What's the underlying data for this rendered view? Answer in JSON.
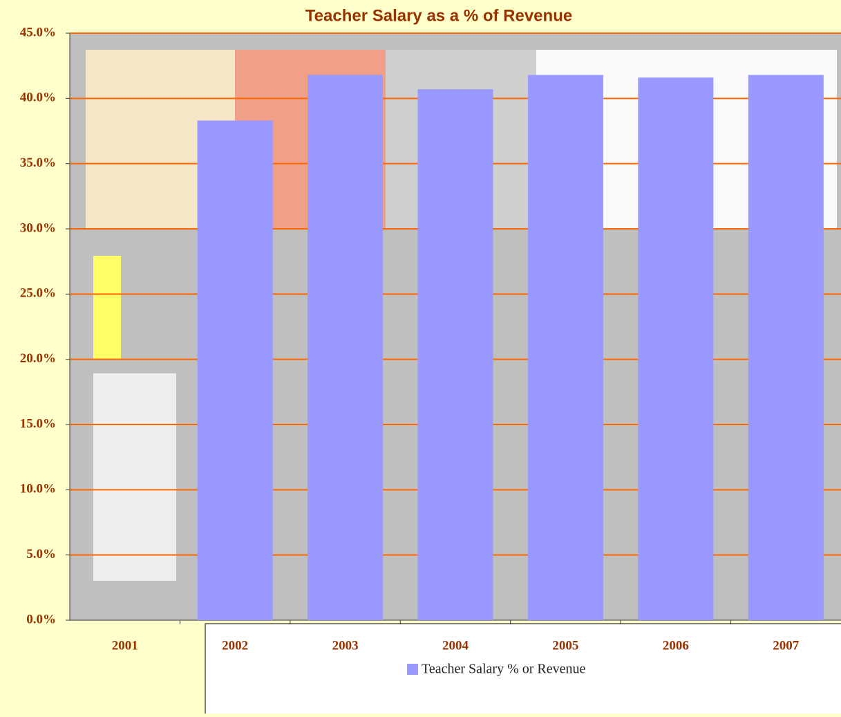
{
  "chart_data": {
    "type": "bar",
    "title": "Teacher Salary as a % of Revenue",
    "categories": [
      "2001",
      "2002",
      "2003",
      "2004",
      "2005",
      "2006",
      "2007"
    ],
    "series": [
      {
        "name": "Teacher Salary % or Revenue",
        "color": "#9999ff",
        "values": [
          null,
          38.3,
          41.8,
          40.7,
          41.8,
          41.6,
          41.8
        ]
      }
    ],
    "ylim": [
      0,
      45
    ],
    "yticks": [
      {
        "value": 0,
        "label": "0.0%"
      },
      {
        "value": 5,
        "label": "5.0%"
      },
      {
        "value": 10,
        "label": "10.0%"
      },
      {
        "value": 15,
        "label": "15.0%"
      },
      {
        "value": 20,
        "label": "20.0%"
      },
      {
        "value": 25,
        "label": "25.0%"
      },
      {
        "value": 30,
        "label": "30.0%"
      },
      {
        "value": 35,
        "label": "35.0%"
      },
      {
        "value": 40,
        "label": "40.0%"
      },
      {
        "value": 45,
        "label": "45.0%"
      }
    ],
    "grid": true,
    "grid_color": "#ff6600",
    "legend": "bottom"
  }
}
